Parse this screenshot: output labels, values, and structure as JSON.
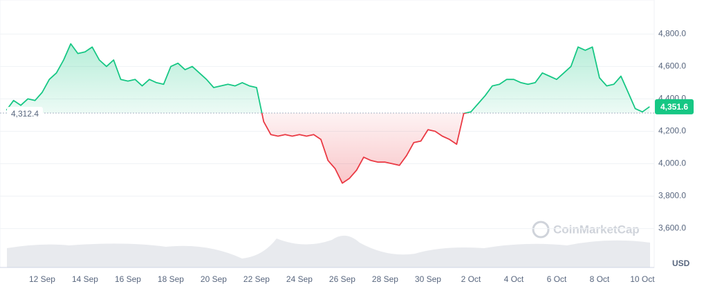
{
  "chart_data": {
    "type": "line",
    "categories": [
      null,
      null,
      null,
      null,
      null,
      "12 Sep",
      null,
      null,
      null,
      null,
      null,
      "14 Sep",
      null,
      null,
      null,
      null,
      null,
      "16 Sep",
      null,
      null,
      null,
      null,
      null,
      "18 Sep",
      null,
      null,
      null,
      null,
      null,
      "20 Sep",
      null,
      null,
      null,
      null,
      null,
      "22 Sep",
      null,
      null,
      null,
      null,
      null,
      "24 Sep",
      null,
      null,
      null,
      null,
      null,
      "26 Sep",
      null,
      null,
      null,
      null,
      null,
      "28 Sep",
      null,
      null,
      null,
      null,
      null,
      "30 Sep",
      null,
      null,
      null,
      null,
      null,
      "2 Oct",
      null,
      null,
      null,
      null,
      null,
      "4 Oct",
      null,
      null,
      null,
      null,
      null,
      "6 Oct",
      null,
      null,
      null,
      null,
      null,
      "8 Oct",
      null,
      null,
      null,
      null,
      null,
      "10 Oct",
      null
    ],
    "values": [
      4330,
      4390,
      4360,
      4400,
      4390,
      4440,
      4520,
      4560,
      4640,
      4740,
      4680,
      4690,
      4720,
      4640,
      4600,
      4640,
      4520,
      4510,
      4520,
      4480,
      4520,
      4500,
      4490,
      4600,
      4620,
      4580,
      4600,
      4560,
      4520,
      4470,
      4480,
      4490,
      4480,
      4500,
      4480,
      4470,
      4260,
      4180,
      4170,
      4180,
      4170,
      4180,
      4170,
      4180,
      4150,
      4020,
      3970,
      3880,
      3910,
      3960,
      4040,
      4020,
      4010,
      4010,
      4000,
      3990,
      4050,
      4130,
      4140,
      4210,
      4200,
      4170,
      4150,
      4120,
      4310,
      4320,
      4370,
      4420,
      4480,
      4490,
      4520,
      4520,
      4500,
      4490,
      4500,
      4560,
      4540,
      4520,
      4560,
      4600,
      4720,
      4700,
      4720,
      4530,
      4480,
      4490,
      4540,
      4440,
      4340,
      4320,
      4351.6
    ],
    "color_up": "#16c784",
    "color_down": "#ea3943",
    "baseline": {
      "value": 4312.4,
      "label": "4,312.4"
    },
    "last_price": {
      "value": 4351.6,
      "label": "4,351.6"
    },
    "ylim": [
      3360,
      5010
    ],
    "yticks": [
      {
        "value": 3600,
        "label": "3,600.0"
      },
      {
        "value": 3800,
        "label": "3,800.0"
      },
      {
        "value": 4000,
        "label": "4,000.0"
      },
      {
        "value": 4200,
        "label": "4,200.0"
      },
      {
        "value": 4400,
        "label": "4,400.0"
      },
      {
        "value": 4600,
        "label": "4,600.0"
      },
      {
        "value": 4800,
        "label": "4,800.0"
      }
    ],
    "y_unit": "USD",
    "watermark": "CoinMarketCap",
    "grid": true
  }
}
